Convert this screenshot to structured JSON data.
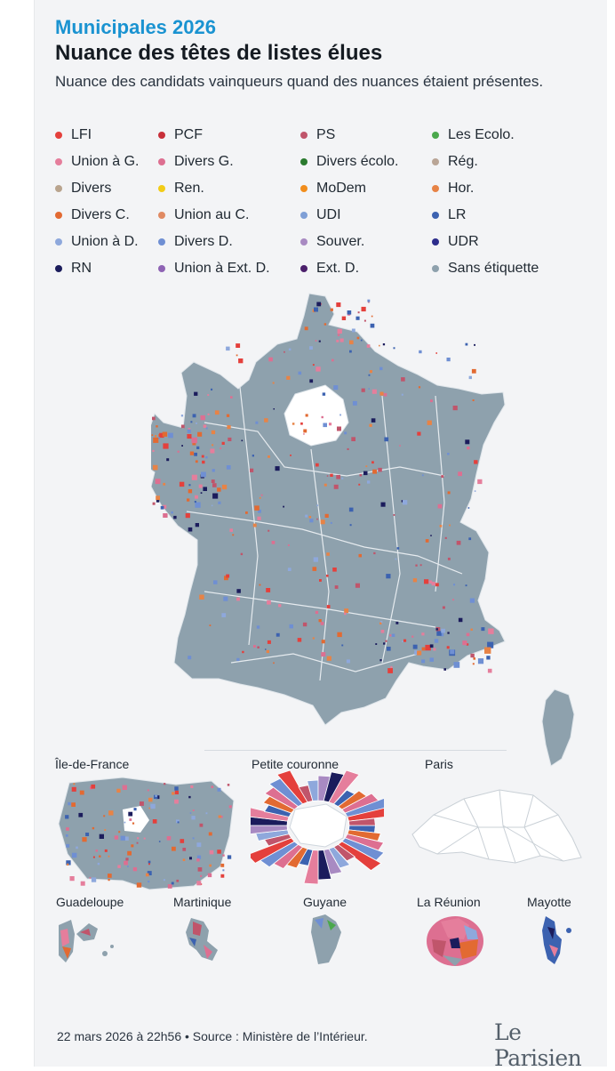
{
  "header": {
    "kicker": "Municipales 2026",
    "title": "Nuance des têtes de listes élues",
    "subtitle": "Nuance des candidats vainqueurs quand des nuances étaient présentes."
  },
  "legend_rows": [
    [
      {
        "label": "LFI",
        "color": "#e4403c"
      },
      {
        "label": "PCF",
        "color": "#c8303a"
      },
      {
        "label": "PS",
        "color": "#c0556b"
      },
      {
        "label": "Les Ecolo.",
        "color": "#4aa84c"
      }
    ],
    [
      {
        "label": "Union à G.",
        "color": "#e57e9c"
      },
      {
        "label": "Divers G.",
        "color": "#dd6f91"
      },
      {
        "label": "Divers écolo.",
        "color": "#2a7a2e"
      },
      {
        "label": "Rég.",
        "color": "#b9a596"
      }
    ],
    [
      {
        "label": "Divers",
        "color": "#b9a48e"
      },
      {
        "label": "Ren.",
        "color": "#f2cc17"
      },
      {
        "label": "MoDem",
        "color": "#f18d1c"
      },
      {
        "label": "Hor.",
        "color": "#e78346"
      }
    ],
    [
      {
        "label": "Divers C.",
        "color": "#e26a32"
      },
      {
        "label": "Union au C.",
        "color": "#e08a63"
      },
      {
        "label": "UDI",
        "color": "#7f9fd6"
      },
      {
        "label": "LR",
        "color": "#3c62b0"
      }
    ],
    [
      {
        "label": "Union à D.",
        "color": "#8ea8dc"
      },
      {
        "label": "Divers D.",
        "color": "#6f8fd3"
      },
      {
        "label": "Souver.",
        "color": "#a88ac2"
      },
      {
        "label": "UDR",
        "color": "#2d2d8c"
      }
    ],
    [
      {
        "label": "RN",
        "color": "#1b1c5c"
      },
      {
        "label": "Union à Ext. D.",
        "color": "#8e63b4"
      },
      {
        "label": "Ext. D.",
        "color": "#4b1f6b"
      },
      {
        "label": "Sans étiquette",
        "color": "#8ea1ad"
      }
    ]
  ],
  "insets": {
    "idf": "Île-de-France",
    "petite_couronne": "Petite couronne",
    "paris": "Paris",
    "guadeloupe": "Guadeloupe",
    "martinique": "Martinique",
    "guyane": "Guyane",
    "reunion": "La Réunion",
    "mayotte": "Mayotte"
  },
  "footer": {
    "source": "22 mars 2026 à 22h56 • Source : Ministère de l’Intérieur.",
    "brand": "Le Parisien"
  },
  "colors": {
    "base": "#8ea1ad",
    "border": "#d9e0e6"
  }
}
